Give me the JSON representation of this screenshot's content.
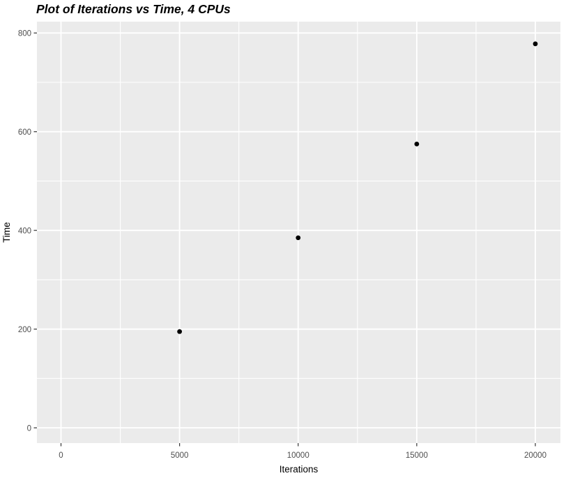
{
  "chart_data": {
    "type": "scatter",
    "title": "Plot of Iterations vs Time, 4 CPUs",
    "xlabel": "Iterations",
    "ylabel": "Time",
    "x": [
      5000,
      10000,
      15000,
      20000
    ],
    "y": [
      195,
      385,
      575,
      778
    ],
    "x_ticks": [
      0,
      5000,
      10000,
      15000,
      20000
    ],
    "x_tick_labels": [
      "0",
      "5000",
      "10000",
      "15000",
      "20000"
    ],
    "y_ticks": [
      0,
      200,
      400,
      600,
      800
    ],
    "y_tick_labels": [
      "0",
      "200",
      "400",
      "600",
      "800"
    ],
    "xlim": [
      -1014,
      21058
    ],
    "ylim": [
      -31,
      823
    ],
    "grid": true,
    "legend": false,
    "colors": {
      "background": "#FFFFFF",
      "panel_bg": "#EBEBEB",
      "grid_major": "#FFFFFF",
      "grid_minor": "#FFFFFF",
      "point": "#000000",
      "tick_mark": "#333333",
      "tick_label": "#4D4D4D",
      "axis_title": "#000000",
      "title": "#000000"
    }
  }
}
